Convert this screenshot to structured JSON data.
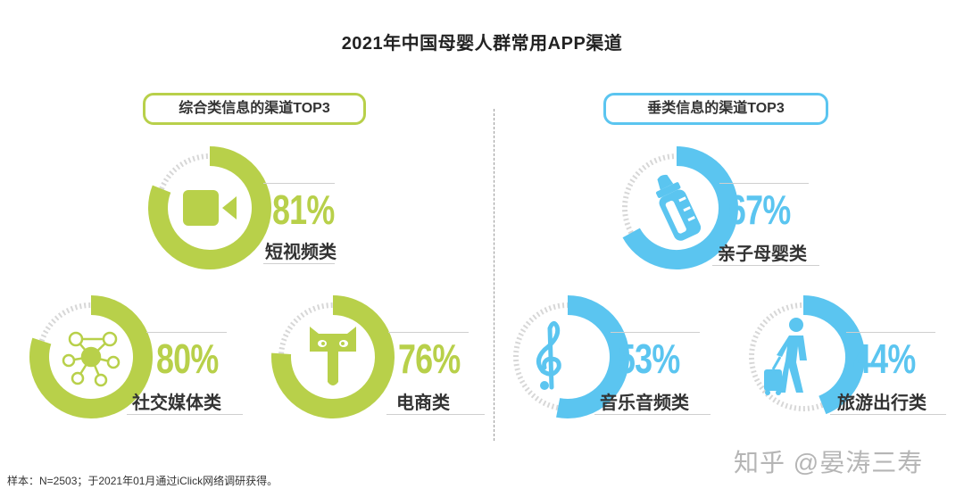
{
  "title": "2021年中国母婴人群常用APP渠道",
  "colors": {
    "green": "#b8d04a",
    "blue": "#5bc5f0",
    "track": "#d7d7d7"
  },
  "sections": {
    "left": {
      "label": "综合类信息的渠道TOP3"
    },
    "right": {
      "label": "垂类信息的渠道TOP3"
    }
  },
  "chart_data": {
    "type": "pie",
    "title": "2021年中国母婴人群常用APP渠道",
    "unit": "%",
    "items": [
      {
        "group": "综合类信息的渠道TOP3",
        "category": "短视频类",
        "value": 81,
        "label": "81%",
        "icon": "video-camera-icon",
        "color": "#b8d04a"
      },
      {
        "group": "综合类信息的渠道TOP3",
        "category": "社交媒体类",
        "value": 80,
        "label": "80%",
        "icon": "social-network-icon",
        "color": "#b8d04a"
      },
      {
        "group": "综合类信息的渠道TOP3",
        "category": "电商类",
        "value": 76,
        "label": "76%",
        "icon": "tmall-cat-icon",
        "color": "#b8d04a"
      },
      {
        "group": "垂类信息的渠道TOP3",
        "category": "亲子母婴类",
        "value": 67,
        "label": "67%",
        "icon": "baby-bottle-icon",
        "color": "#5bc5f0"
      },
      {
        "group": "垂类信息的渠道TOP3",
        "category": "音乐音频类",
        "value": 53,
        "label": "53%",
        "icon": "treble-clef-icon",
        "color": "#5bc5f0"
      },
      {
        "group": "垂类信息的渠道TOP3",
        "category": "旅游出行类",
        "value": 44,
        "label": "44%",
        "icon": "traveler-luggage-icon",
        "color": "#5bc5f0"
      }
    ]
  },
  "footnote": "样本：N=2503；于2021年01月通过iClick网络调研获得。",
  "watermark": "知乎 @晏涛三寿"
}
